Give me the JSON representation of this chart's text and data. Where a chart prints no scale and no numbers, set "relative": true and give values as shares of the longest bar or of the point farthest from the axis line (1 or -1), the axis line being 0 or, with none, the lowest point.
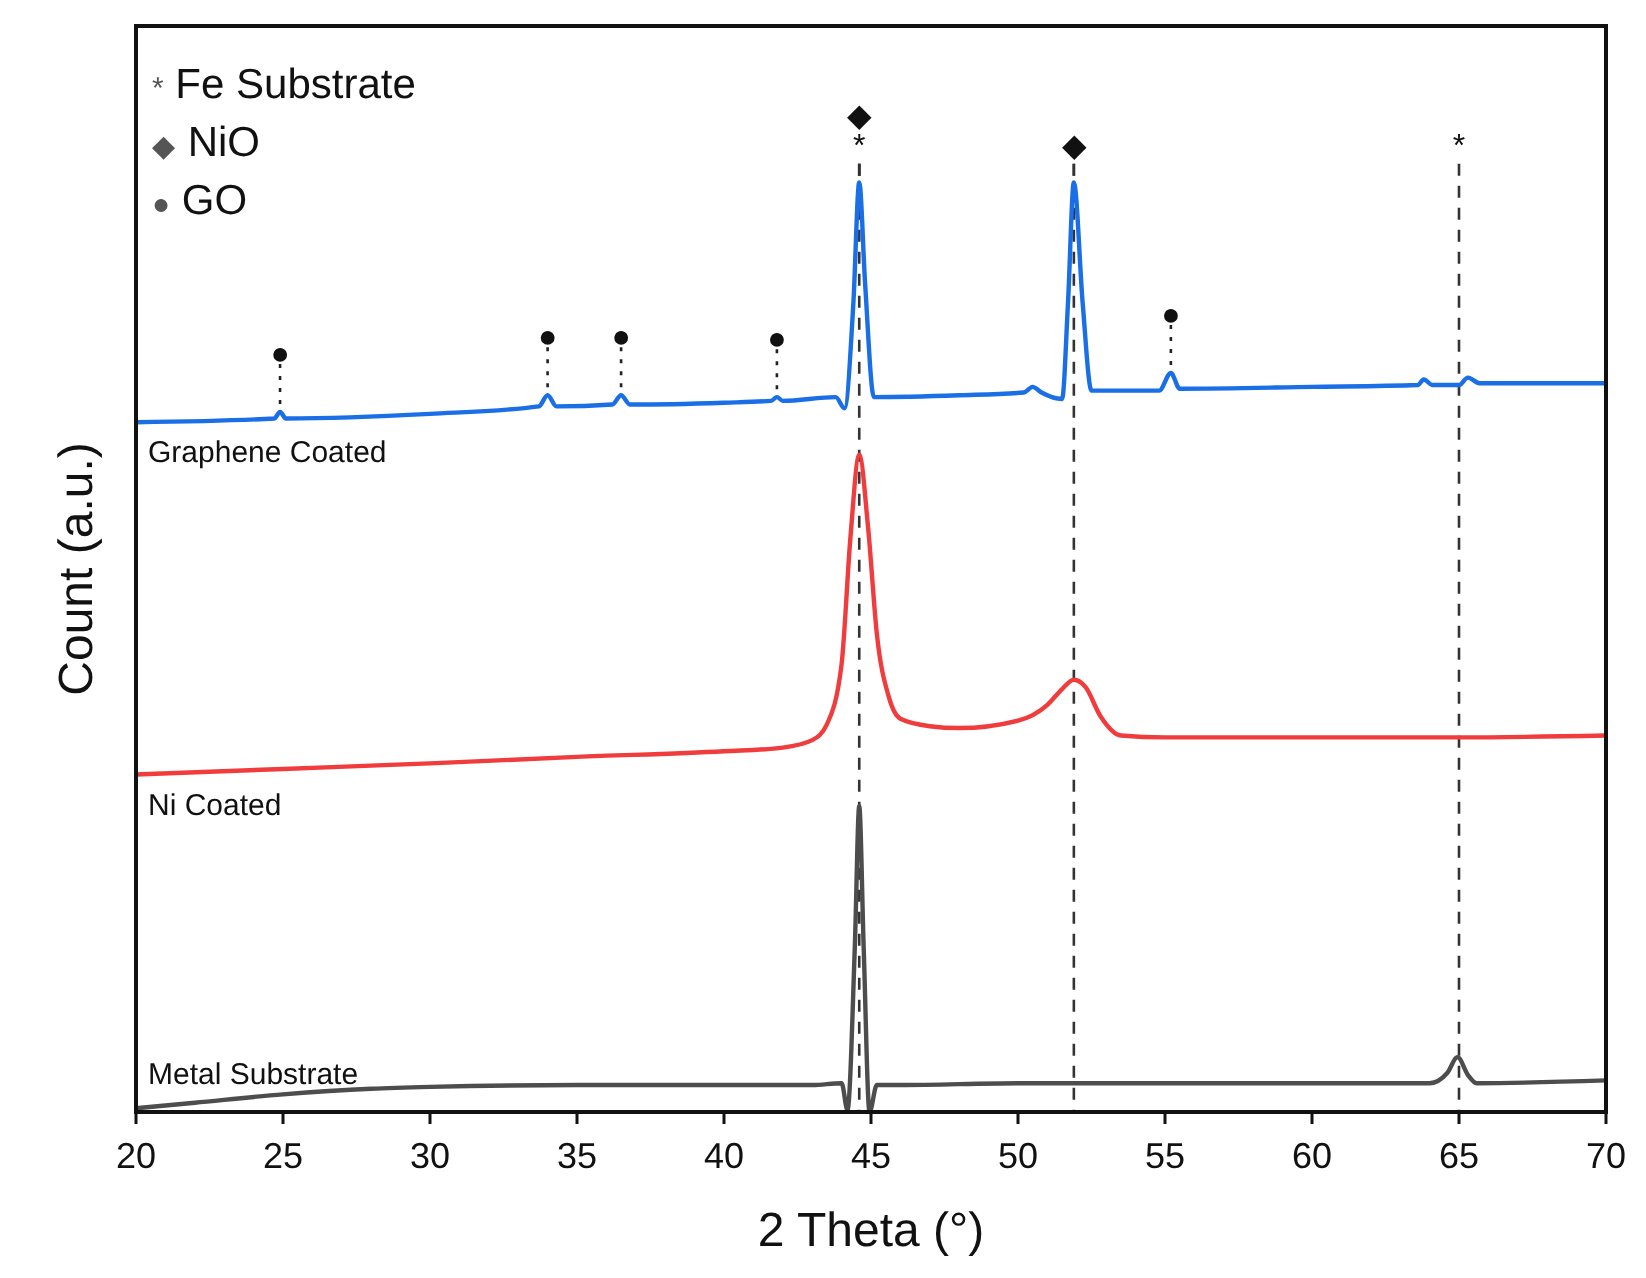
{
  "chart_data": {
    "type": "line",
    "relative": true,
    "xlabel": "2 Theta (°)",
    "ylabel": "Count (a.u.)",
    "xlim": [
      20,
      70
    ],
    "xticks": [
      20,
      25,
      30,
      35,
      40,
      45,
      50,
      55,
      60,
      65,
      70
    ],
    "marker": "none",
    "line_style": "solid",
    "series": [
      {
        "name": "Graphene Coated",
        "color": "#1a6ee6",
        "x": [
          20,
          24.7,
          24.9,
          25.1,
          30,
          33.7,
          34,
          34.3,
          36.2,
          36.5,
          36.8,
          40,
          41.6,
          41.8,
          42,
          43.8,
          44.1,
          44.4,
          44.6,
          44.8,
          45.1,
          48,
          50.2,
          50.5,
          50.8,
          51.5,
          51.7,
          51.9,
          52.2,
          52.5,
          54.8,
          55.2,
          55.5,
          60,
          63.6,
          63.8,
          64.1,
          65,
          65.3,
          65.7,
          70
        ],
        "values": [
          0.742,
          0.746,
          0.753,
          0.746,
          0.751,
          0.759,
          0.771,
          0.759,
          0.761,
          0.771,
          0.761,
          0.763,
          0.765,
          0.769,
          0.765,
          0.769,
          0.757,
          0.87,
          1.0,
          0.891,
          0.769,
          0.771,
          0.774,
          0.78,
          0.774,
          0.767,
          0.87,
          1.0,
          0.87,
          0.776,
          0.776,
          0.795,
          0.778,
          0.78,
          0.782,
          0.788,
          0.782,
          0.782,
          0.79,
          0.784,
          0.784
        ]
      },
      {
        "name": "Ni Coated",
        "color": "#f03c3c",
        "x": [
          20,
          25,
          30,
          35,
          40,
          42,
          43,
          43.5,
          44,
          44.3,
          44.6,
          44.9,
          45.2,
          45.6,
          46,
          47,
          48,
          50,
          51,
          51.5,
          51.9,
          52.3,
          52.8,
          53.5,
          55,
          60,
          65,
          70
        ],
        "values": [
          0.363,
          0.369,
          0.375,
          0.382,
          0.388,
          0.392,
          0.4,
          0.417,
          0.482,
          0.618,
          0.707,
          0.629,
          0.514,
          0.447,
          0.423,
          0.415,
          0.413,
          0.421,
          0.438,
          0.455,
          0.465,
          0.457,
          0.426,
          0.405,
          0.403,
          0.403,
          0.403,
          0.405
        ]
      },
      {
        "name": "Metal Substrate",
        "color": "#4d4d4d",
        "x": [
          20,
          22,
          25,
          28,
          30,
          35,
          40,
          43,
          44,
          44.2,
          44.45,
          44.6,
          44.75,
          44.95,
          45.2,
          46,
          50,
          55,
          60,
          64,
          64.6,
          64.95,
          65.3,
          65.6,
          70
        ],
        "values": [
          0.004,
          0.01,
          0.019,
          0.025,
          0.027,
          0.029,
          0.029,
          0.029,
          0.031,
          0.002,
          0.178,
          0.329,
          0.178,
          0.0,
          0.029,
          0.029,
          0.031,
          0.031,
          0.031,
          0.031,
          0.042,
          0.059,
          0.04,
          0.031,
          0.034
        ]
      }
    ],
    "ref_lines": [
      {
        "axis": "x",
        "value": 44.6,
        "line_style": "dashed",
        "color": "#333333"
      },
      {
        "axis": "x",
        "value": 51.9,
        "line_style": "dashed",
        "color": "#333333"
      },
      {
        "axis": "x",
        "value": 65,
        "line_style": "dashed",
        "color": "#333333",
        "label": "*"
      }
    ],
    "annotations": [
      "* Fe Substrate",
      "◆ NiO",
      "● GO",
      {
        "text": "●",
        "x": 24.9,
        "y": 0.753
      },
      {
        "text": "●",
        "x": 34,
        "y": 0.771
      },
      {
        "text": "●",
        "x": 36.5,
        "y": 0.771
      },
      {
        "text": "●",
        "x": 41.8,
        "y": 0.769
      },
      {
        "text": "●",
        "x": 55.2,
        "y": 0.795
      },
      {
        "text": "◆",
        "x": 44.6,
        "y": 1.0
      },
      {
        "text": "*",
        "x": 44.6,
        "y": 1.0
      },
      {
        "text": "◆",
        "x": 51.9,
        "y": 1.0
      }
    ]
  }
}
